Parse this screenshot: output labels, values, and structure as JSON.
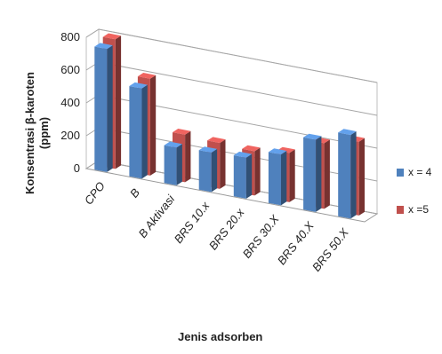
{
  "chart_data": {
    "type": "bar",
    "title": "",
    "xlabel": "Jenis adsorben",
    "ylabel": "Konsentrasi β-karoten (ppm)",
    "ylim": [
      0,
      800
    ],
    "yticks": [
      "0",
      "200",
      "400",
      "600",
      "800"
    ],
    "categories": [
      "CPO",
      "B",
      "B Aktivasi",
      "BRS 10.x",
      "BRS 20.x",
      "BRS 30.X",
      "BRS 40.X",
      "BRS 50.X"
    ],
    "series": [
      {
        "name": "x = 4",
        "color": "#4f81bd",
        "values": [
          750,
          550,
          230,
          240,
          250,
          310,
          440,
          510
        ]
      },
      {
        "name": "x =5",
        "color": "#c0504d",
        "values": [
          790,
          590,
          290,
          280,
          270,
          300,
          400,
          450
        ]
      }
    ],
    "legend_position": "right",
    "grid": true,
    "style": "3d-clustered-column"
  }
}
